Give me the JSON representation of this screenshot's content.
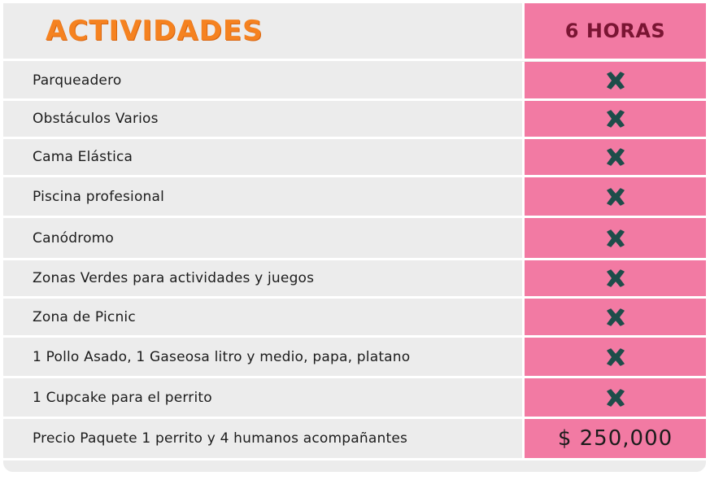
{
  "header": {
    "title": "ACTIVIDADES",
    "column": "6 HORAS"
  },
  "rows": [
    {
      "label": "Parqueadero",
      "icon": "x-icon"
    },
    {
      "label": "Obstáculos Varios",
      "icon": "x-icon"
    },
    {
      "label": "Cama Elástica",
      "icon": "x-icon"
    },
    {
      "label": "Piscina profesional",
      "icon": "x-icon"
    },
    {
      "label": "Canódromo",
      "icon": "x-icon"
    },
    {
      "label": "Zonas Verdes para actividades y juegos",
      "icon": "x-icon"
    },
    {
      "label": "Zona de Picnic",
      "icon": "x-icon"
    },
    {
      "label": "1 Pollo Asado, 1 Gaseosa litro y medio, papa, platano",
      "icon": "x-icon"
    },
    {
      "label": "1 Cupcake para el perrito",
      "icon": "x-icon"
    }
  ],
  "price_row": {
    "label": "Precio Paquete 1 perrito y 4 humanos acompañantes",
    "value": "$ 250,000"
  },
  "colors": {
    "title": "#f58220",
    "column_header": "#7a1533",
    "pink": "#f27aa3",
    "gray": "#ececec",
    "check": "#1e4d4a"
  }
}
